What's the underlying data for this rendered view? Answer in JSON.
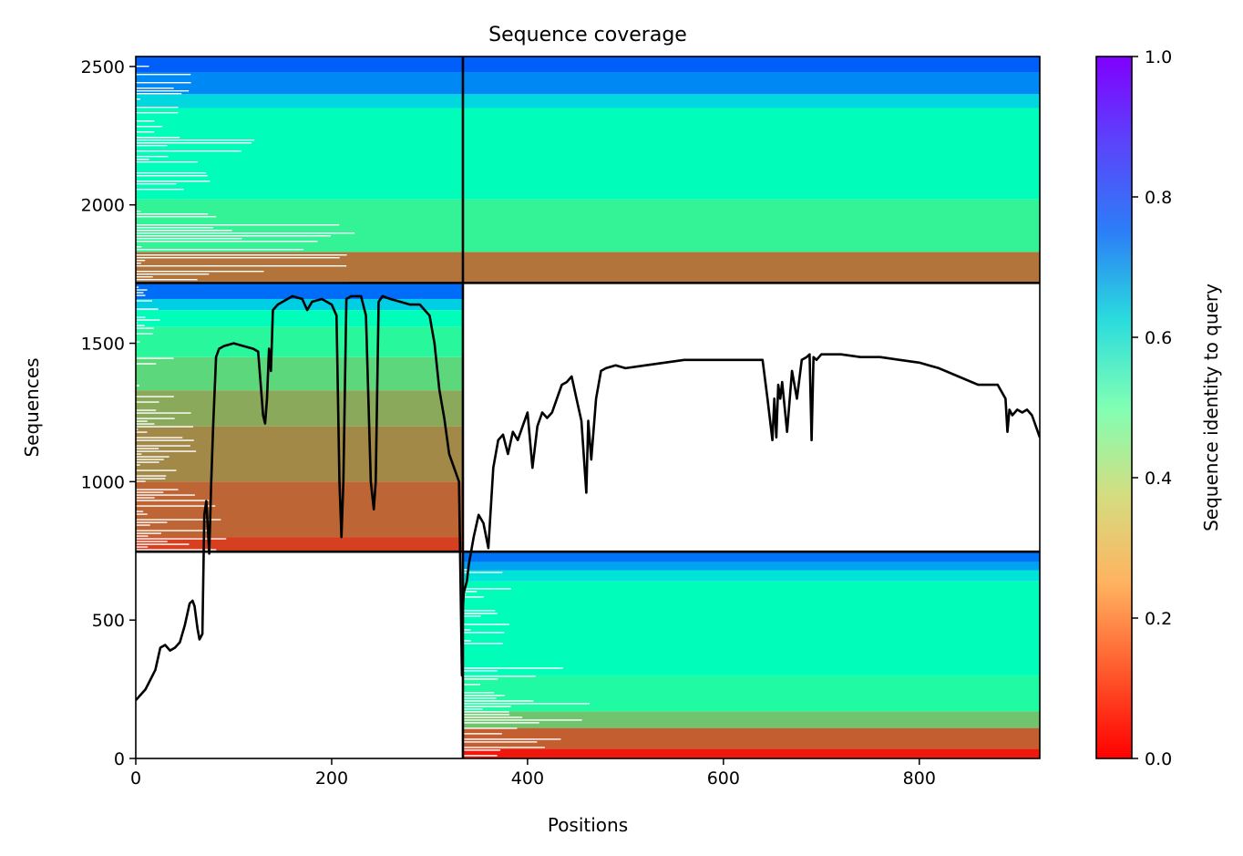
{
  "chart_data": {
    "type": "heatmap",
    "title": "Sequence coverage",
    "xlabel": "Positions",
    "ylabel": "Sequences",
    "xlim": [
      0,
      923
    ],
    "ylim": [
      0,
      2536
    ],
    "x_ticks": [
      0,
      200,
      400,
      600,
      800
    ],
    "y_ticks": [
      0,
      500,
      1000,
      1500,
      2000,
      2500
    ],
    "colormap": "rainbow_r",
    "colorbar": {
      "label": "Sequence identity to query",
      "range": [
        0,
        1
      ],
      "ticks": [
        "0.0",
        "0.2",
        "0.4",
        "0.6",
        "0.8",
        "1.0"
      ]
    },
    "chain_boundary_x": 334,
    "block_boundaries_y": [
      747,
      1718
    ],
    "blocks": [
      {
        "name": "paired",
        "x": [
          0,
          923
        ],
        "y": [
          1718,
          2536
        ],
        "bands": [
          [
            1718,
            1830,
            0.15
          ],
          [
            1830,
            2020,
            0.4
          ],
          [
            2020,
            2350,
            0.52
          ],
          [
            2350,
            2400,
            0.68
          ],
          [
            2400,
            2480,
            0.82
          ],
          [
            2480,
            2536,
            0.88
          ]
        ]
      },
      {
        "name": "chain-1 unpaired",
        "x": [
          0,
          334
        ],
        "y": [
          747,
          1718
        ],
        "bands": [
          [
            747,
            800,
            0.08
          ],
          [
            800,
            1000,
            0.13
          ],
          [
            1000,
            1200,
            0.18
          ],
          [
            1200,
            1330,
            0.23
          ],
          [
            1330,
            1450,
            0.32
          ],
          [
            1450,
            1560,
            0.42
          ],
          [
            1560,
            1620,
            0.52
          ],
          [
            1620,
            1660,
            0.7
          ],
          [
            1660,
            1718,
            0.86
          ]
        ]
      },
      {
        "name": "chain-2 unpaired",
        "x": [
          334,
          923
        ],
        "y": [
          0,
          747
        ],
        "bands": [
          [
            0,
            35,
            0.03
          ],
          [
            35,
            110,
            0.12
          ],
          [
            110,
            170,
            0.28
          ],
          [
            170,
            300,
            0.44
          ],
          [
            300,
            640,
            0.52
          ],
          [
            640,
            680,
            0.65
          ],
          [
            680,
            710,
            0.78
          ],
          [
            710,
            747,
            0.85
          ]
        ]
      }
    ],
    "coverage_line": {
      "x": [
        0,
        10,
        20,
        25,
        30,
        35,
        40,
        45,
        50,
        55,
        58,
        60,
        63,
        65,
        68,
        70,
        72,
        75,
        77,
        79,
        82,
        85,
        90,
        100,
        110,
        120,
        125,
        130,
        132,
        134,
        136,
        138,
        140,
        145,
        150,
        160,
        170,
        175,
        180,
        190,
        200,
        205,
        208,
        210,
        212,
        215,
        220,
        230,
        235,
        240,
        243,
        245,
        248,
        252,
        260,
        270,
        280,
        290,
        300,
        305,
        310,
        315,
        320,
        325,
        330,
        333,
        334,
        335,
        338,
        340,
        345,
        350,
        355,
        360,
        365,
        370,
        375,
        380,
        385,
        390,
        395,
        400,
        405,
        410,
        415,
        420,
        425,
        430,
        435,
        440,
        445,
        450,
        455,
        460,
        462,
        465,
        470,
        475,
        480,
        490,
        500,
        520,
        540,
        560,
        580,
        600,
        620,
        640,
        645,
        650,
        652,
        654,
        656,
        658,
        660,
        665,
        670,
        675,
        680,
        685,
        688,
        690,
        692,
        695,
        700,
        720,
        740,
        760,
        780,
        800,
        820,
        840,
        860,
        880,
        888,
        890,
        892,
        895,
        900,
        905,
        910,
        915,
        920,
        923
      ],
      "y": [
        210,
        250,
        320,
        400,
        410,
        390,
        400,
        420,
        480,
        560,
        570,
        550,
        470,
        430,
        450,
        880,
        930,
        740,
        1000,
        1200,
        1450,
        1480,
        1490,
        1500,
        1490,
        1480,
        1470,
        1240,
        1210,
        1300,
        1480,
        1400,
        1620,
        1640,
        1650,
        1670,
        1660,
        1620,
        1650,
        1660,
        1640,
        1600,
        1000,
        800,
        1000,
        1660,
        1670,
        1670,
        1600,
        1000,
        900,
        1000,
        1650,
        1670,
        1660,
        1650,
        1640,
        1640,
        1600,
        1500,
        1330,
        1230,
        1100,
        1050,
        1000,
        300,
        550,
        600,
        640,
        700,
        800,
        880,
        850,
        760,
        1050,
        1150,
        1170,
        1100,
        1180,
        1150,
        1200,
        1250,
        1050,
        1200,
        1250,
        1230,
        1250,
        1300,
        1350,
        1360,
        1380,
        1300,
        1220,
        960,
        1220,
        1080,
        1300,
        1400,
        1410,
        1420,
        1410,
        1420,
        1430,
        1440,
        1440,
        1440,
        1440,
        1440,
        1300,
        1150,
        1300,
        1160,
        1350,
        1300,
        1360,
        1180,
        1400,
        1300,
        1440,
        1450,
        1460,
        1150,
        1450,
        1440,
        1460,
        1460,
        1450,
        1450,
        1440,
        1430,
        1410,
        1380,
        1350,
        1350,
        1300,
        1180,
        1260,
        1240,
        1260,
        1250,
        1260,
        1240,
        1190,
        1160
      ]
    }
  }
}
